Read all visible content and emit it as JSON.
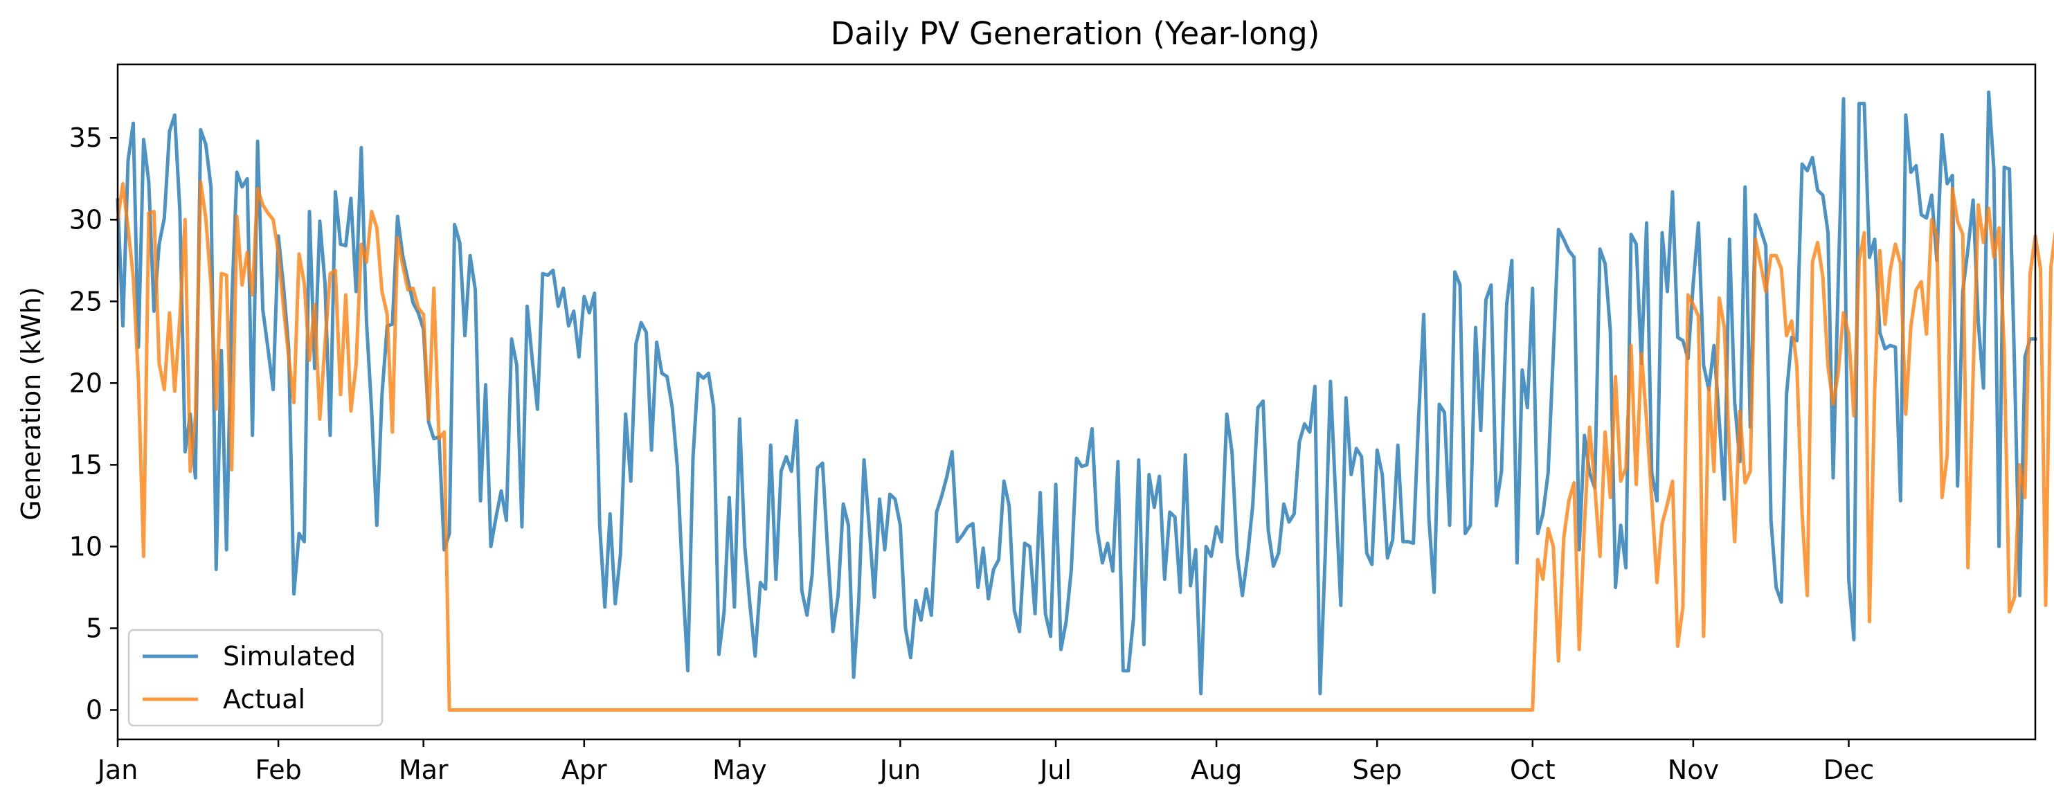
{
  "chart_data": {
    "type": "line",
    "title": "Daily PV Generation (Year-long)",
    "xlabel": "",
    "ylabel": "Generation (kWh)",
    "x_start": "Jan 1",
    "x_end": "Dec 31",
    "x_ticks": [
      "Jan",
      "Feb",
      "Mar",
      "Apr",
      "May",
      "Jun",
      "Jul",
      "Aug",
      "Sep",
      "Oct",
      "Nov",
      "Dec"
    ],
    "y_ticks": [
      0,
      5,
      10,
      15,
      20,
      25,
      30,
      35
    ],
    "ylim": [
      -1.8,
      39.5
    ],
    "grid": false,
    "legend_position": "lower-left",
    "series": [
      {
        "name": "Simulated",
        "color": "#1f77b4",
        "values": [
          31.2,
          23.5,
          33.6,
          35.9,
          22.2,
          34.9,
          32.3,
          24.4,
          28.5,
          30.1,
          35.4,
          36.4,
          30.5,
          15.8,
          18.1,
          14.2,
          35.5,
          34.6,
          32.0,
          8.6,
          22.0,
          9.8,
          24.8,
          32.9,
          32.0,
          32.5,
          16.8,
          34.8,
          24.5,
          22.1,
          19.6,
          29.0,
          25.9,
          22.1,
          7.1,
          10.8,
          10.3,
          30.5,
          20.9,
          29.9,
          26.1,
          16.8,
          31.7,
          28.5,
          28.4,
          31.3,
          25.6,
          34.4,
          23.8,
          18.3,
          11.3,
          19.3,
          23.5,
          23.6,
          30.2,
          27.8,
          26.3,
          24.9,
          24.3,
          23.3,
          17.6,
          16.6,
          16.7,
          9.8,
          10.8,
          29.7,
          28.6,
          22.9,
          27.8,
          25.7,
          12.8,
          19.9,
          10.0,
          11.8,
          13.4,
          11.6,
          22.7,
          21.1,
          11.2,
          24.7,
          21.4,
          18.4,
          26.7,
          26.6,
          26.9,
          24.7,
          25.8,
          23.5,
          24.4,
          21.6,
          25.3,
          24.3,
          25.5,
          11.3,
          6.3,
          12.0,
          6.5,
          9.5,
          18.1,
          14.0,
          22.4,
          23.7,
          23.1,
          15.9,
          22.5,
          20.6,
          20.4,
          18.5,
          14.8,
          8.0,
          2.4,
          15.4,
          20.6,
          20.3,
          20.6,
          18.5,
          3.4,
          6.0,
          13.0,
          6.3,
          17.8,
          10.0,
          6.4,
          3.3,
          7.8,
          7.4,
          16.2,
          8.0,
          14.6,
          15.5,
          14.6,
          17.7,
          7.3,
          5.8,
          8.3,
          14.8,
          15.1,
          9.7,
          4.8,
          7.0,
          12.6,
          11.3,
          2.0,
          6.8,
          15.3,
          11.2,
          6.9,
          12.9,
          9.8,
          13.2,
          12.9,
          11.3,
          5.0,
          3.2,
          6.7,
          5.5,
          7.4,
          5.8,
          12.1,
          13.1,
          14.3,
          15.8,
          10.3,
          10.7,
          11.2,
          11.4,
          7.5,
          9.9,
          6.8,
          8.6,
          9.2,
          14.0,
          12.5,
          6.1,
          4.8,
          10.2,
          10.0,
          5.9,
          13.3,
          5.9,
          4.5,
          13.8,
          3.7,
          5.4,
          8.6,
          15.4,
          14.9,
          15.0,
          17.2,
          11.0,
          9.0,
          10.2,
          8.5,
          15.2,
          2.4,
          2.4,
          5.6,
          15.3,
          4.0,
          14.4,
          12.4,
          14.3,
          8.0,
          12.1,
          11.8,
          7.2,
          15.6,
          7.6,
          9.8,
          1.0,
          10.0,
          9.4,
          11.2,
          10.3,
          18.1,
          15.8,
          9.5,
          7.0,
          9.4,
          12.5,
          18.5,
          18.9,
          11.0,
          8.8,
          9.6,
          12.6,
          11.5,
          12.0,
          16.4,
          17.5,
          17.0,
          19.8,
          1.0,
          9.6,
          20.1,
          13.1,
          6.4,
          19.1,
          14.4,
          16.0,
          15.5,
          9.6,
          8.9,
          15.9,
          14.4,
          9.3,
          10.4,
          16.2,
          10.3,
          10.3,
          10.2,
          17.8,
          24.2,
          11.7,
          7.2,
          18.7,
          18.2,
          11.3,
          26.8,
          26.0,
          10.8,
          11.3,
          23.4,
          17.1,
          25.1,
          26.0,
          12.5,
          14.6,
          24.8,
          27.5,
          9.0,
          20.8,
          18.5,
          25.8,
          10.8,
          12.0,
          14.5,
          21.8,
          29.4,
          28.8,
          28.1,
          27.7,
          9.8,
          16.8,
          14.5,
          13.6,
          28.2,
          27.3,
          23.2,
          7.5,
          11.3,
          8.7,
          29.1,
          28.5,
          21.2,
          29.8,
          14.5,
          12.8,
          29.2,
          25.6,
          31.7,
          22.8,
          22.6,
          21.5,
          26.1,
          29.8,
          21.1,
          19.6,
          22.3,
          17.8,
          12.9,
          28.8,
          18.8,
          15.2,
          32.0,
          17.3,
          30.3,
          29.4,
          28.4,
          11.6,
          7.5,
          6.6,
          19.3,
          22.8,
          22.6,
          33.4,
          33.0,
          33.8,
          31.8,
          31.5,
          29.2,
          14.2,
          26.5,
          37.4,
          8.0,
          4.3,
          37.1,
          37.1,
          27.7,
          28.8,
          23.1,
          22.1,
          22.3,
          22.2,
          12.8,
          36.4,
          32.9,
          33.3,
          30.3,
          30.1,
          31.5,
          27.5,
          35.2,
          32.2,
          32.7,
          13.7,
          25.6,
          28.2,
          31.2,
          23.7,
          19.7,
          37.8,
          33.1,
          10.0,
          33.2,
          33.1,
          20.9,
          7.0,
          21.6,
          22.7,
          22.7
        ]
      },
      {
        "name": "Actual",
        "color": "#ff7f0e",
        "values": [
          30.0,
          32.2,
          29.5,
          26.5,
          20.2,
          9.4,
          30.4,
          30.5,
          21.2,
          19.6,
          24.3,
          19.5,
          24.0,
          30.0,
          14.6,
          18.0,
          32.3,
          30.1,
          26.0,
          18.4,
          26.7,
          26.6,
          14.7,
          30.2,
          26.0,
          28.0,
          25.4,
          31.9,
          30.9,
          30.4,
          30.0,
          28.0,
          24.6,
          21.6,
          18.8,
          27.9,
          26.1,
          21.4,
          24.8,
          17.8,
          22.4,
          26.7,
          26.9,
          19.3,
          25.4,
          18.3,
          21.1,
          28.5,
          27.4,
          30.5,
          29.5,
          25.6,
          24.2,
          17.0,
          28.9,
          27.2,
          25.7,
          25.8,
          24.6,
          24.2,
          17.8,
          25.8,
          16.6,
          17.0,
          0,
          0,
          0,
          0,
          0,
          0,
          0,
          0,
          0,
          0,
          0,
          0,
          0,
          0,
          0,
          0,
          0,
          0,
          0,
          0,
          0,
          0,
          0,
          0,
          0,
          0,
          0,
          0,
          0,
          0,
          0,
          0,
          0,
          0,
          0,
          0,
          0,
          0,
          0,
          0,
          0,
          0,
          0,
          0,
          0,
          0,
          0,
          0,
          0,
          0,
          0,
          0,
          0,
          0,
          0,
          0,
          0,
          0,
          0,
          0,
          0,
          0,
          0,
          0,
          0,
          0,
          0,
          0,
          0,
          0,
          0,
          0,
          0,
          0,
          0,
          0,
          0,
          0,
          0,
          0,
          0,
          0,
          0,
          0,
          0,
          0,
          0,
          0,
          0,
          0,
          0,
          0,
          0,
          0,
          0,
          0,
          0,
          0,
          0,
          0,
          0,
          0,
          0,
          0,
          0,
          0,
          0,
          0,
          0,
          0,
          0,
          0,
          0,
          0,
          0,
          0,
          0,
          0,
          0,
          0,
          0,
          0,
          0,
          0,
          0,
          0,
          0,
          0,
          0,
          0,
          0,
          0,
          0,
          0,
          0,
          0,
          0,
          0,
          0,
          0,
          0,
          0,
          0,
          0,
          0,
          0,
          0,
          0,
          0,
          0,
          0,
          0,
          0,
          0,
          0,
          0,
          0,
          0,
          0,
          0,
          0,
          0,
          0,
          0,
          0,
          0,
          0,
          0,
          0,
          0,
          0,
          0,
          0,
          0,
          0,
          0,
          0,
          0,
          0,
          0,
          0,
          0,
          0,
          0,
          0,
          0,
          0,
          0,
          0,
          0,
          0,
          0,
          0,
          0,
          0,
          0,
          0,
          0,
          0,
          0,
          0,
          0,
          0,
          0,
          0,
          0,
          0,
          0,
          0,
          0,
          9.2,
          8.0,
          11.1,
          10.0,
          3.0,
          10.5,
          12.8,
          13.9,
          3.7,
          11.3,
          17.3,
          13.7,
          9.4,
          17.0,
          13.0,
          20.4,
          14.0,
          14.8,
          22.3,
          13.8,
          21.8,
          17.7,
          12.9,
          7.8,
          11.4,
          12.6,
          14.0,
          3.9,
          6.3,
          25.4,
          24.8,
          24.1,
          4.5,
          19.7,
          14.6,
          25.2,
          23.4,
          15.6,
          10.3,
          18.3,
          13.9,
          14.6,
          28.8,
          27.3,
          25.6,
          27.8,
          27.8,
          27.0,
          22.9,
          23.8,
          21.0,
          12.0,
          7.0,
          27.4,
          28.6,
          26.5,
          21.0,
          18.7,
          20.7,
          24.3,
          23.0,
          18.0,
          27.5,
          29.2,
          5.4,
          19.5,
          28.1,
          23.6,
          26.9,
          28.5,
          27.3,
          18.1,
          23.5,
          25.7,
          26.2,
          23.0,
          30.0,
          29.0,
          13.0,
          15.6,
          31.9,
          29.9,
          29.1,
          8.7,
          20.5,
          30.9,
          28.6,
          30.7,
          27.7,
          29.5,
          22.0,
          6.0,
          6.9,
          15.0,
          13.0,
          26.7,
          29.0,
          27.0,
          6.4,
          27.1,
          29.5,
          14.9,
          31.9,
          28.9,
          21.0,
          19.7,
          24.5,
          31.3,
          30.1,
          24.2,
          30.6,
          31.8,
          23.8,
          23.0,
          30.3,
          18.1,
          29.0,
          32.6,
          30.1,
          29.2,
          31.9,
          30.7,
          16.9,
          24.2,
          30.1,
          24.8,
          30.8
        ]
      }
    ]
  }
}
